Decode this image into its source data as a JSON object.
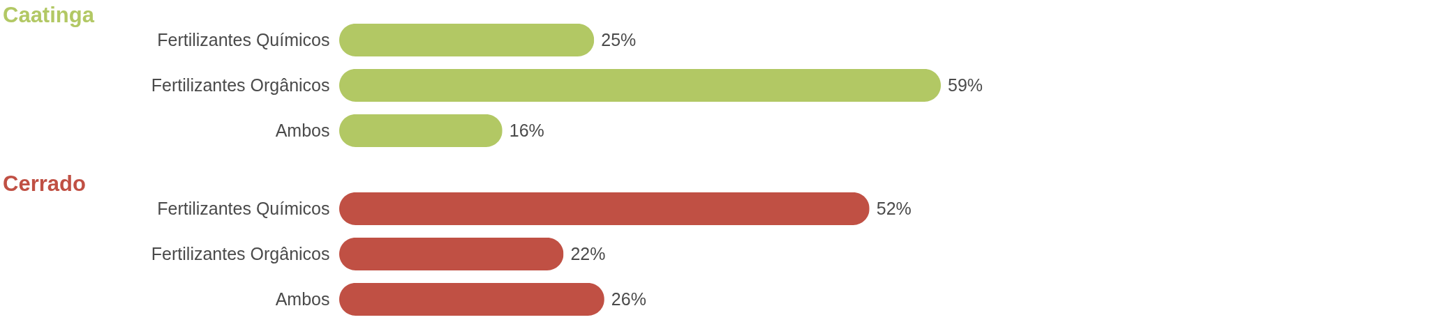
{
  "chart_data": [
    {
      "type": "bar",
      "orientation": "horizontal",
      "title": "Caatinga",
      "categories": [
        "Fertilizantes Químicos",
        "Fertilizantes Orgânicos",
        "Ambos"
      ],
      "values": [
        25,
        59,
        16
      ],
      "value_labels": [
        "25%",
        "59%",
        "16%"
      ],
      "color": "#b2c864"
    },
    {
      "type": "bar",
      "orientation": "horizontal",
      "title": "Cerrado",
      "categories": [
        "Fertilizantes Químicos",
        "Fertilizantes Orgânicos",
        "Ambos"
      ],
      "values": [
        52,
        22,
        26
      ],
      "value_labels": [
        "52%",
        "22%",
        "26%"
      ],
      "color": "#c05044"
    }
  ]
}
